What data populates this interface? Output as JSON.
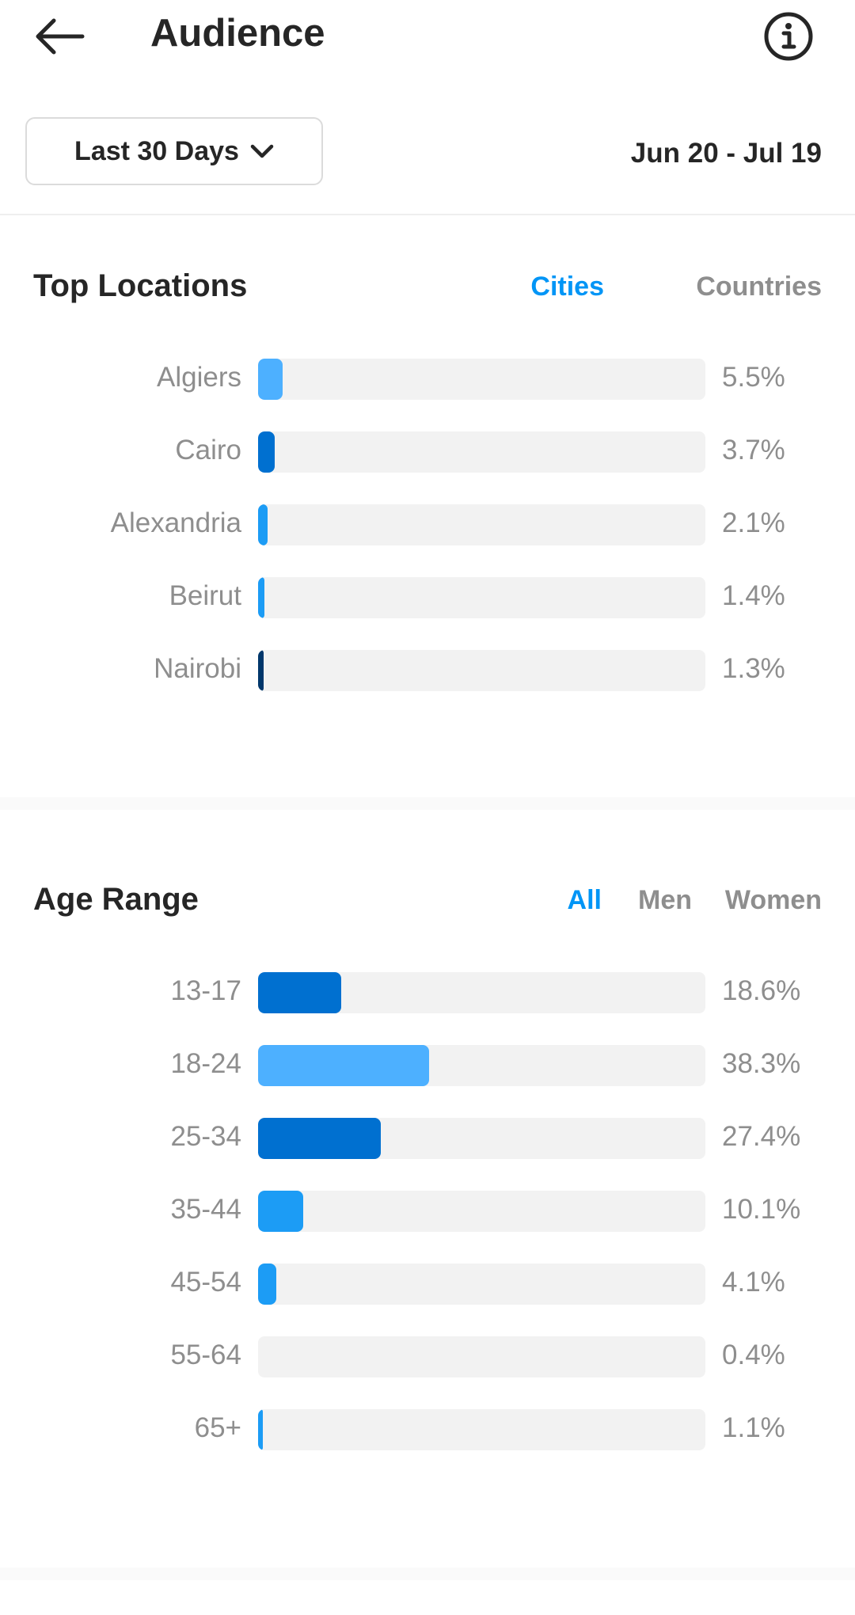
{
  "header": {
    "title": "Audience",
    "back_icon": "arrow-left-icon",
    "info_icon": "info-icon"
  },
  "controls": {
    "range_label": "Last 30 Days",
    "dropdown_icon": "chevron-down-icon",
    "date_range": "Jun 20 - Jul 19"
  },
  "locations": {
    "title": "Top Locations",
    "tabs": [
      {
        "label": "Cities",
        "active": true
      },
      {
        "label": "Countries",
        "active": false
      }
    ],
    "rows": [
      {
        "label": "Algiers",
        "value": "5.5%",
        "fraction": 0.055,
        "color": "#4db0ff"
      },
      {
        "label": "Cairo",
        "value": "3.7%",
        "fraction": 0.037,
        "color": "#0070d0"
      },
      {
        "label": "Alexandria",
        "value": "2.1%",
        "fraction": 0.021,
        "color": "#1c9cf5"
      },
      {
        "label": "Beirut",
        "value": "1.4%",
        "fraction": 0.014,
        "color": "#1c9cf5"
      },
      {
        "label": "Nairobi",
        "value": "1.3%",
        "fraction": 0.013,
        "color": "#00376b"
      }
    ]
  },
  "age": {
    "title": "Age Range",
    "tabs": [
      {
        "label": "All",
        "active": true
      },
      {
        "label": "Men",
        "active": false
      },
      {
        "label": "Women",
        "active": false
      }
    ],
    "rows": [
      {
        "label": "13-17",
        "value": "18.6%",
        "fraction": 0.186,
        "color": "#0070d0"
      },
      {
        "label": "18-24",
        "value": "38.3%",
        "fraction": 0.383,
        "color": "#4db0ff"
      },
      {
        "label": "25-34",
        "value": "27.4%",
        "fraction": 0.274,
        "color": "#0070d0"
      },
      {
        "label": "35-44",
        "value": "10.1%",
        "fraction": 0.101,
        "color": "#1c9cf5"
      },
      {
        "label": "45-54",
        "value": "4.1%",
        "fraction": 0.041,
        "color": "#1c9cf5"
      },
      {
        "label": "55-64",
        "value": "0.4%",
        "fraction": 0.004,
        "color": "#f2f2f2"
      },
      {
        "label": "65+",
        "value": "1.1%",
        "fraction": 0.011,
        "color": "#1c9cf5"
      }
    ]
  },
  "colors": {
    "accent": "#0095f6",
    "muted": "#8e8e8e",
    "track": "#f2f2f2"
  }
}
